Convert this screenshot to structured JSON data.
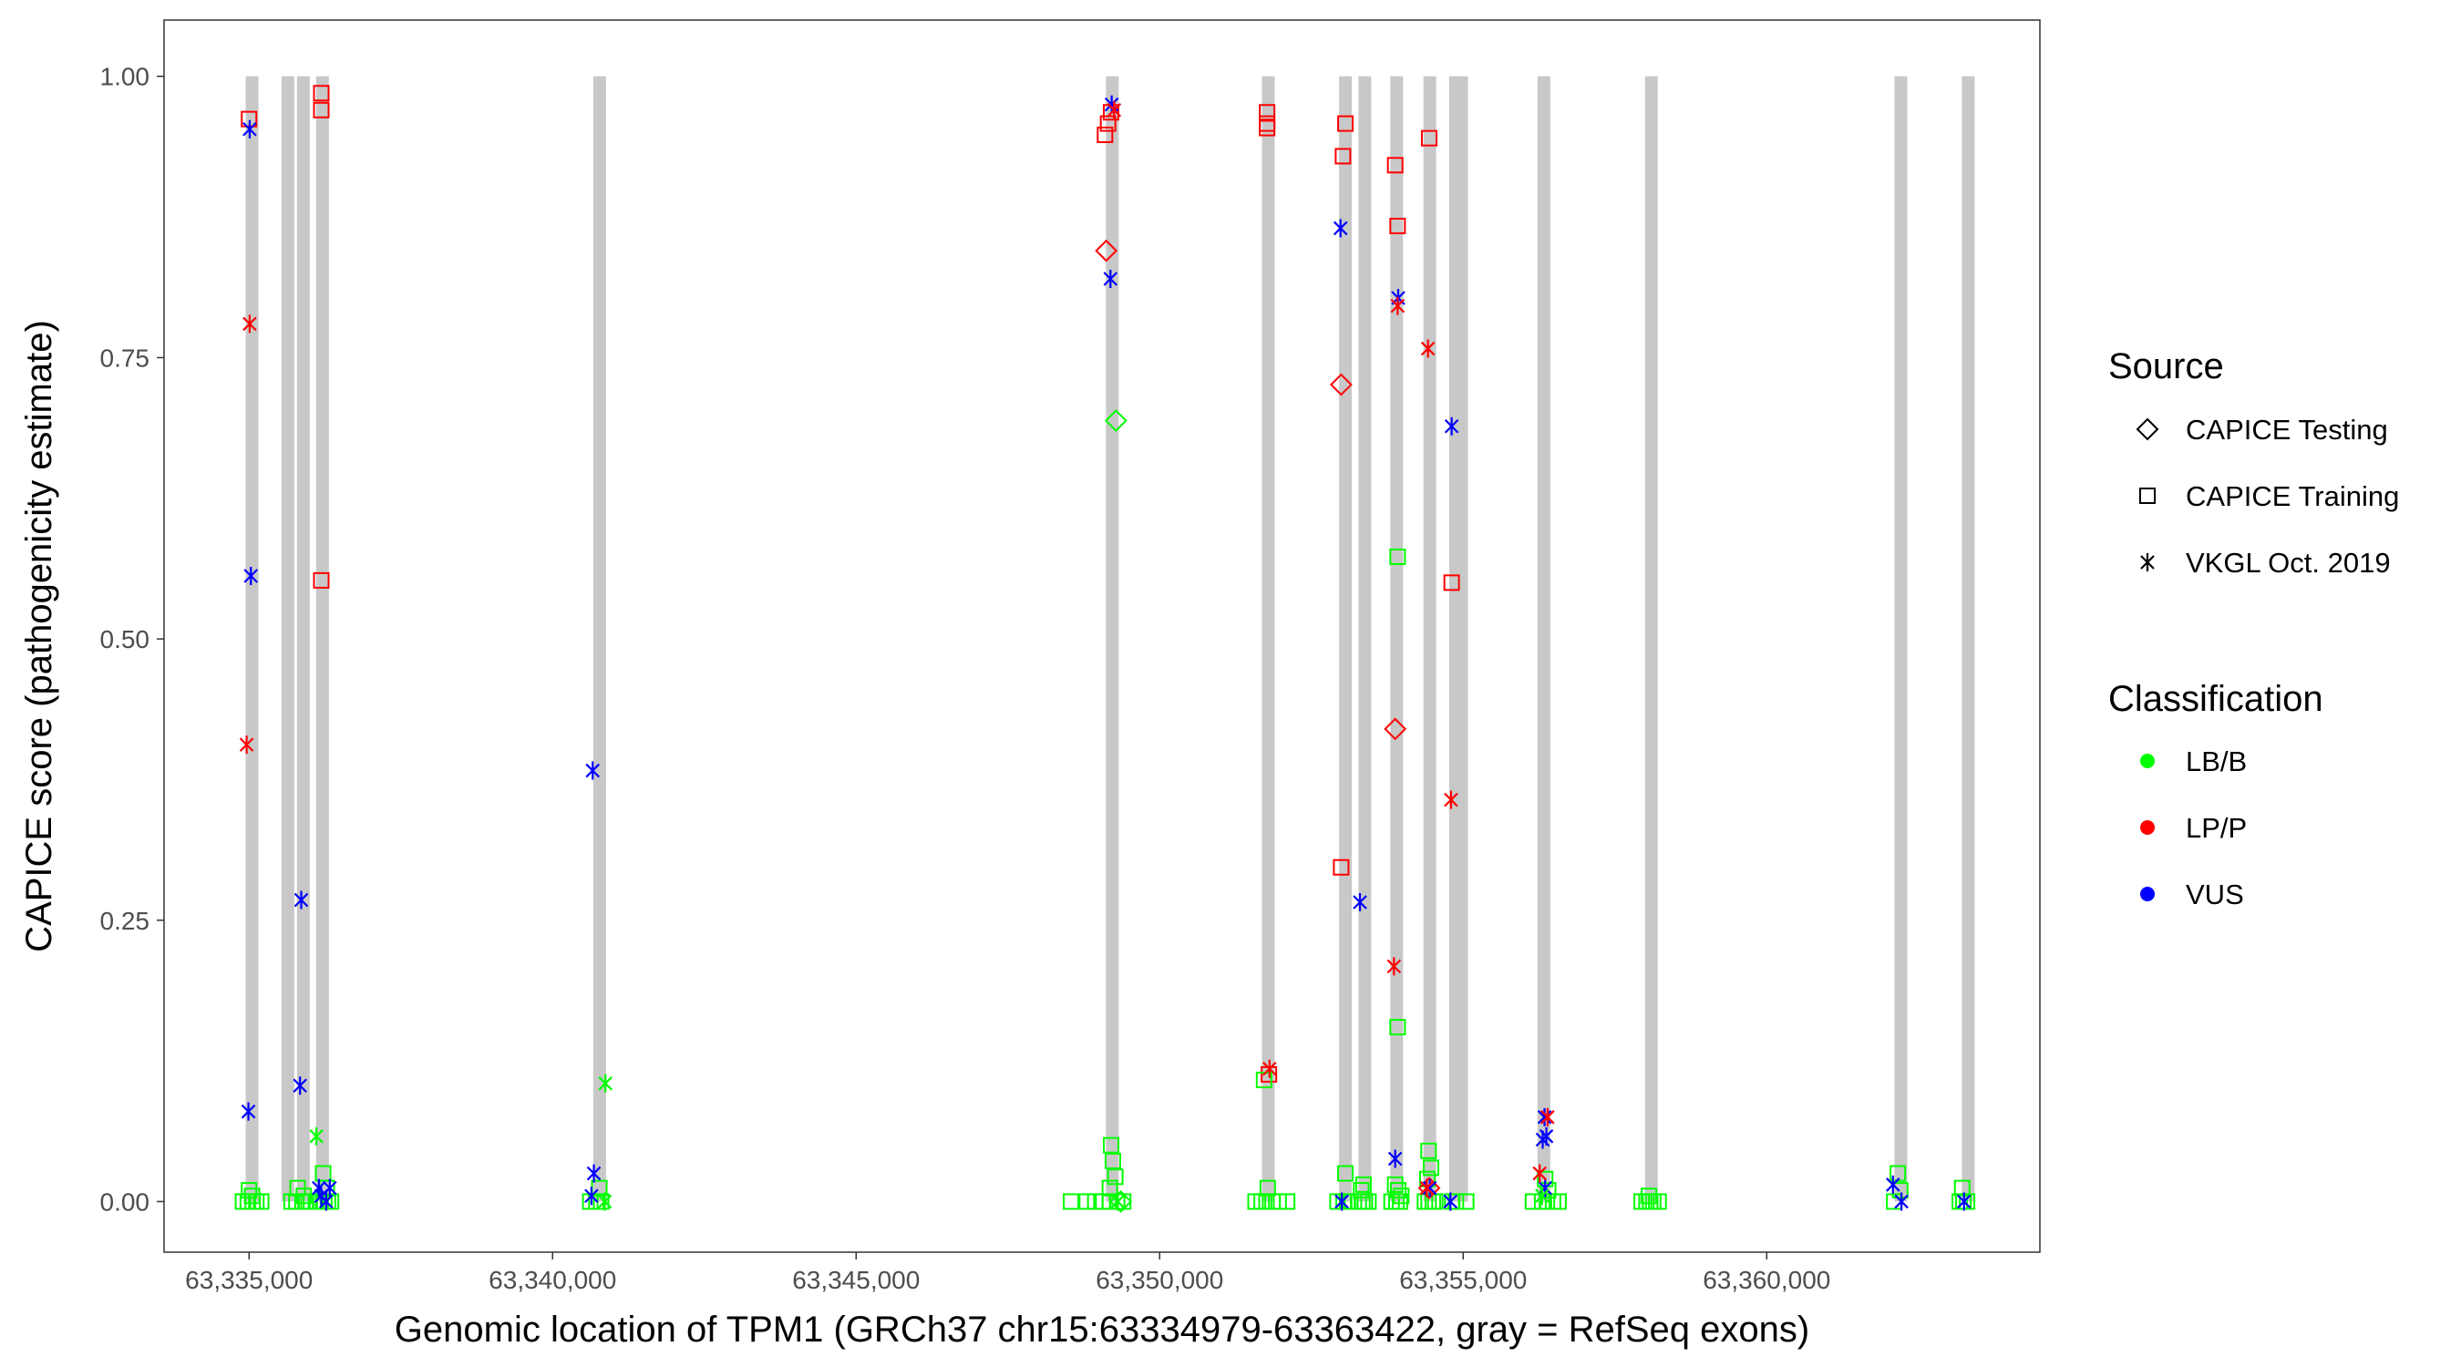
{
  "chart_data": {
    "type": "scatter",
    "xlabel": "Genomic location of TPM1 (GRCh37 chr15:63334979-63363422, gray = RefSeq exons)",
    "ylabel": "CAPICE score (pathogenicity estimate)",
    "xlim": [
      63333600,
      63364500
    ],
    "ylim": [
      -0.045,
      1.05
    ],
    "x_ticks": [
      {
        "value": 63335000,
        "label": "63,335,000"
      },
      {
        "value": 63340000,
        "label": "63,340,000"
      },
      {
        "value": 63345000,
        "label": "63,345,000"
      },
      {
        "value": 63350000,
        "label": "63,350,000"
      },
      {
        "value": 63355000,
        "label": "63,355,000"
      },
      {
        "value": 63360000,
        "label": "63,360,000"
      }
    ],
    "y_ticks": [
      {
        "value": 0.0,
        "label": "0.00"
      },
      {
        "value": 0.25,
        "label": "0.25"
      },
      {
        "value": 0.5,
        "label": "0.50"
      },
      {
        "value": 0.75,
        "label": "0.75"
      },
      {
        "value": 1.0,
        "label": "1.00"
      }
    ],
    "grid": false,
    "legend_position": "right",
    "exons": [
      [
        63334970,
        63335130
      ],
      [
        63335590,
        63335690
      ],
      [
        63335820,
        63335970
      ],
      [
        63336120,
        63336300
      ],
      [
        63340670,
        63340880
      ],
      [
        63349120,
        63349320
      ],
      [
        63351700,
        63351880
      ],
      [
        63352980,
        63353140
      ],
      [
        63353310,
        63353450
      ],
      [
        63353820,
        63353990
      ],
      [
        63354380,
        63354520
      ],
      [
        63354770,
        63355080
      ],
      [
        63356240,
        63356420
      ],
      [
        63358020,
        63358180
      ],
      [
        63362140,
        63362280
      ],
      [
        63363220,
        63363420
      ]
    ],
    "legends": {
      "source": {
        "title": "Source",
        "items": [
          {
            "label": "CAPICE Testing",
            "shape": "diamond"
          },
          {
            "label": "CAPICE Training",
            "shape": "square"
          },
          {
            "label": "VKGL Oct. 2019",
            "shape": "asterisk"
          }
        ]
      },
      "classification": {
        "title": "Classification",
        "items": [
          {
            "label": "LB/B",
            "color": "#00ff00"
          },
          {
            "label": "LP/P",
            "color": "#ff0000"
          },
          {
            "label": "VUS",
            "color": "#0000ff"
          }
        ]
      }
    },
    "series": [
      {
        "source": "CAPICE Training",
        "classification": "LP/P",
        "points": [
          [
            63335000,
            0.962
          ],
          [
            63336190,
            0.985
          ],
          [
            63336190,
            0.97
          ],
          [
            63336190,
            0.552
          ],
          [
            63349100,
            0.948
          ],
          [
            63349150,
            0.958
          ],
          [
            63349200,
            0.968
          ],
          [
            63351770,
            0.968
          ],
          [
            63351770,
            0.954
          ],
          [
            63351770,
            0.958
          ],
          [
            63353060,
            0.958
          ],
          [
            63353020,
            0.929
          ],
          [
            63352990,
            0.297
          ],
          [
            63353880,
            0.921
          ],
          [
            63353920,
            0.867
          ],
          [
            63354440,
            0.945
          ],
          [
            63354810,
            0.55
          ],
          [
            63351800,
            0.113
          ]
        ]
      },
      {
        "source": "CAPICE Training",
        "classification": "LB/B",
        "points": [
          [
            63334900,
            0.0
          ],
          [
            63334980,
            0.0
          ],
          [
            63335060,
            0.0
          ],
          [
            63335120,
            0.0
          ],
          [
            63335200,
            0.0
          ],
          [
            63335000,
            0.01
          ],
          [
            63335050,
            0.005
          ],
          [
            63335700,
            0.0
          ],
          [
            63335780,
            0.0
          ],
          [
            63335880,
            0.0
          ],
          [
            63335930,
            0.0
          ],
          [
            63335980,
            0.0
          ],
          [
            63335800,
            0.012
          ],
          [
            63335900,
            0.005
          ],
          [
            63336100,
            0.0
          ],
          [
            63336180,
            0.0
          ],
          [
            63336240,
            0.0
          ],
          [
            63336300,
            0.0
          ],
          [
            63336350,
            0.0
          ],
          [
            63336220,
            0.025
          ],
          [
            63336280,
            0.012
          ],
          [
            63340620,
            0.0
          ],
          [
            63340720,
            0.0
          ],
          [
            63340800,
            0.0
          ],
          [
            63340770,
            0.012
          ],
          [
            63348540,
            0.0
          ],
          [
            63348800,
            0.0
          ],
          [
            63348940,
            0.0
          ],
          [
            63349070,
            0.0
          ],
          [
            63349180,
            0.0
          ],
          [
            63349300,
            0.0
          ],
          [
            63349400,
            0.0
          ],
          [
            63349200,
            0.05
          ],
          [
            63349230,
            0.036
          ],
          [
            63349270,
            0.022
          ],
          [
            63349180,
            0.012
          ],
          [
            63351580,
            0.0
          ],
          [
            63351680,
            0.0
          ],
          [
            63351760,
            0.0
          ],
          [
            63351860,
            0.0
          ],
          [
            63351960,
            0.0
          ],
          [
            63352100,
            0.0
          ],
          [
            63351780,
            0.012
          ],
          [
            63351720,
            0.108
          ],
          [
            63352930,
            0.0
          ],
          [
            63353030,
            0.0
          ],
          [
            63353090,
            0.0
          ],
          [
            63353140,
            0.0
          ],
          [
            63353280,
            0.0
          ],
          [
            63353340,
            0.0
          ],
          [
            63353380,
            0.0
          ],
          [
            63353440,
            0.0
          ],
          [
            63353060,
            0.025
          ],
          [
            63353360,
            0.015
          ],
          [
            63353320,
            0.01
          ],
          [
            63353820,
            0.0
          ],
          [
            63353900,
            0.0
          ],
          [
            63353960,
            0.0
          ],
          [
            63353880,
            0.015
          ],
          [
            63353930,
            0.01
          ],
          [
            63353980,
            0.005
          ],
          [
            63353920,
            0.573
          ],
          [
            63353920,
            0.155
          ],
          [
            63354370,
            0.0
          ],
          [
            63354430,
            0.0
          ],
          [
            63354500,
            0.0
          ],
          [
            63354540,
            0.0
          ],
          [
            63354430,
            0.045
          ],
          [
            63354470,
            0.03
          ],
          [
            63354410,
            0.02
          ],
          [
            63354820,
            0.0
          ],
          [
            63354880,
            0.0
          ],
          [
            63355050,
            0.0
          ],
          [
            63356150,
            0.0
          ],
          [
            63356300,
            0.0
          ],
          [
            63356380,
            0.0
          ],
          [
            63356480,
            0.0
          ],
          [
            63356570,
            0.0
          ],
          [
            63356350,
            0.02
          ],
          [
            63356400,
            0.01
          ],
          [
            63357940,
            0.0
          ],
          [
            63358020,
            0.0
          ],
          [
            63358080,
            0.0
          ],
          [
            63358130,
            0.0
          ],
          [
            63358220,
            0.0
          ],
          [
            63358060,
            0.005
          ],
          [
            63362100,
            0.0
          ],
          [
            63362160,
            0.025
          ],
          [
            63362200,
            0.01
          ],
          [
            63363180,
            0.0
          ],
          [
            63363240,
            0.0
          ],
          [
            63363300,
            0.0
          ],
          [
            63363220,
            0.012
          ]
        ]
      },
      {
        "source": "CAPICE Testing",
        "classification": "LP/P",
        "points": [
          [
            63349120,
            0.845
          ],
          [
            63352990,
            0.726
          ],
          [
            63353880,
            0.42
          ],
          [
            63354440,
            0.012
          ]
        ]
      },
      {
        "source": "CAPICE Testing",
        "classification": "LB/B",
        "points": [
          [
            63349280,
            0.694
          ],
          [
            63349360,
            0.0
          ]
        ]
      },
      {
        "source": "VKGL Oct. 2019",
        "classification": "VUS",
        "points": [
          [
            63335010,
            0.953
          ],
          [
            63335030,
            0.556
          ],
          [
            63334990,
            0.08
          ],
          [
            63335860,
            0.268
          ],
          [
            63335840,
            0.103
          ],
          [
            63336150,
            0.012
          ],
          [
            63336270,
            0.0
          ],
          [
            63336330,
            0.012
          ],
          [
            63336190,
            0.005
          ],
          [
            63340660,
            0.383
          ],
          [
            63340680,
            0.025
          ],
          [
            63340640,
            0.005
          ],
          [
            63349210,
            0.975
          ],
          [
            63349190,
            0.82
          ],
          [
            63352980,
            0.865
          ],
          [
            63353300,
            0.266
          ],
          [
            63353000,
            0.0
          ],
          [
            63353930,
            0.803
          ],
          [
            63353880,
            0.038
          ],
          [
            63354810,
            0.689
          ],
          [
            63354790,
            0.0
          ],
          [
            63354450,
            0.012
          ],
          [
            63356340,
            0.075
          ],
          [
            63356370,
            0.058
          ],
          [
            63356310,
            0.055
          ],
          [
            63356350,
            0.012
          ],
          [
            63362080,
            0.015
          ],
          [
            63362220,
            0.0
          ],
          [
            63363250,
            0.0
          ]
        ]
      },
      {
        "source": "VKGL Oct. 2019",
        "classification": "LP/P",
        "points": [
          [
            63335010,
            0.78
          ],
          [
            63334960,
            0.406
          ],
          [
            63349250,
            0.97
          ],
          [
            63351810,
            0.118
          ],
          [
            63353920,
            0.796
          ],
          [
            63354420,
            0.758
          ],
          [
            63354800,
            0.357
          ],
          [
            63353860,
            0.209
          ],
          [
            63354400,
            0.012
          ],
          [
            63356390,
            0.075
          ],
          [
            63356260,
            0.025
          ]
        ]
      },
      {
        "source": "VKGL Oct. 2019",
        "classification": "LB/B",
        "points": [
          [
            63336110,
            0.058
          ],
          [
            63340870,
            0.105
          ],
          [
            63340860,
            0.0
          ],
          [
            63349310,
            0.0
          ],
          [
            63356300,
            0.005
          ]
        ]
      }
    ]
  }
}
